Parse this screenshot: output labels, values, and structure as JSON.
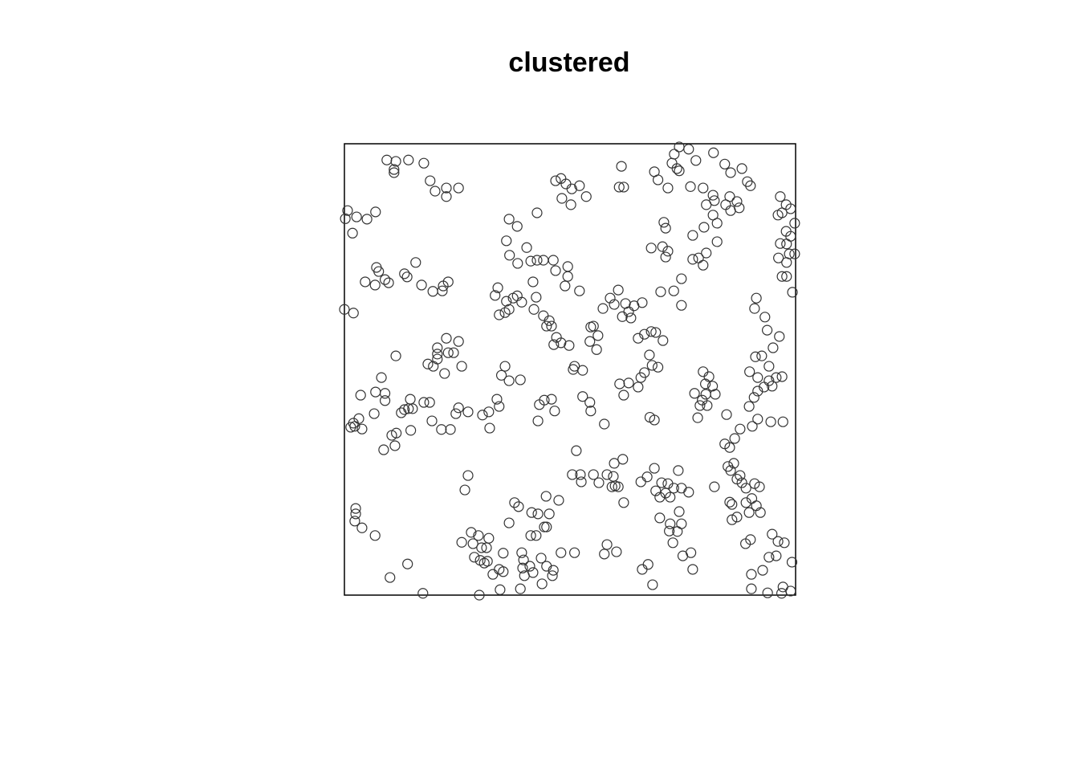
{
  "chart_data": {
    "type": "scatter",
    "title": "clustered",
    "xlim": [
      0,
      1
    ],
    "ylim": [
      0,
      1
    ],
    "color": "#333333",
    "x": [
      0.094,
      0.114,
      0.11,
      0.11,
      0.142,
      0.176,
      0.19,
      0.201,
      0.226,
      0.226,
      0.253,
      0.007,
      0.002,
      0.027,
      0.05,
      0.069,
      0.018,
      0.071,
      0.076,
      0.046,
      0.068,
      0.09,
      0.098,
      0.133,
      0.139,
      0.158,
      0.171,
      0.196,
      0.217,
      0.219,
      0.23,
      0.0,
      0.02,
      0.226,
      0.253,
      0.206,
      0.206,
      0.185,
      0.197,
      0.206,
      0.23,
      0.242,
      0.222,
      0.26,
      0.114,
      0.082,
      0.036,
      0.069,
      0.09,
      0.066,
      0.09,
      0.133,
      0.146,
      0.142,
      0.151,
      0.176,
      0.189,
      0.126,
      0.032,
      0.02,
      0.023,
      0.039,
      0.014,
      0.115,
      0.105,
      0.147,
      0.112,
      0.087,
      0.194,
      0.215,
      0.235,
      0.247,
      0.253,
      0.274,
      0.025,
      0.025,
      0.023,
      0.039,
      0.068,
      0.101,
      0.14,
      0.174,
      0.299,
      0.274,
      0.267,
      0.26,
      0.281,
      0.285,
      0.297,
      0.304,
      0.32,
      0.315,
      0.288,
      0.301,
      0.31,
      0.317,
      0.329,
      0.343,
      0.352,
      0.352,
      0.345,
      0.377,
      0.386,
      0.365,
      0.393,
      0.397,
      0.395,
      0.399,
      0.39,
      0.411,
      0.418,
      0.413,
      0.425,
      0.415,
      0.429,
      0.447,
      0.454,
      0.443,
      0.448,
      0.436,
      0.448,
      0.438,
      0.461,
      0.463,
      0.475,
      0.48,
      0.51,
      0.505,
      0.523,
      0.525,
      0.552,
      0.564,
      0.582,
      0.596,
      0.6,
      0.593,
      0.607,
      0.619,
      0.598,
      0.617,
      0.576,
      0.582,
      0.603,
      0.66,
      0.673,
      0.683,
      0.657,
      0.671,
      0.687,
      0.703,
      0.69,
      0.699,
      0.712,
      0.717,
      0.73,
      0.74,
      0.747,
      0.763,
      0.722,
      0.742,
      0.699,
      0.722,
      0.747,
      0.72,
      0.738,
      0.728,
      0.768,
      0.75,
      0.772,
      0.82,
      0.85,
      0.863,
      0.856,
      0.87,
      0.877,
      0.881,
      0.89,
      0.909,
      0.92,
      0.854,
      0.859,
      0.89,
      0.903,
      0.913,
      0.922,
      0.897,
      0.859,
      0.87,
      0.889,
      0.9,
      0.843,
      0.854,
      0.865,
      0.877,
      0.904,
      0.916,
      0.945,
      0.972,
      0.948,
      0.961,
      0.975,
      0.941,
      0.957,
      0.992,
      0.927,
      0.902,
      0.902,
      0.938,
      0.972,
      0.989,
      0.969,
      0.966,
      0.979,
      0.989,
      0.97,
      0.961,
      0.998,
      0.979,
      0.989,
      0.966,
      0.98,
      0.986,
      0.998,
      0.962,
      0.98,
      0.97,
      0.98,
      0.993,
      0.964,
      0.913,
      0.909,
      0.932,
      0.937,
      0.95,
      0.911,
      0.925,
      0.941,
      0.898,
      0.916,
      0.941,
      0.957,
      0.97,
      0.93,
      0.916,
      0.948,
      0.908,
      0.897,
      0.742,
      0.726,
      0.737,
      0.742,
      0.763,
      0.731,
      0.687,
      0.695,
      0.717,
      0.767,
      0.779,
      0.818,
      0.843,
      0.856,
      0.881,
      0.893,
      0.9,
      0.795,
      0.817,
      0.82,
      0.802,
      0.854,
      0.87,
      0.875,
      0.856,
      0.845,
      0.826,
      0.817,
      0.797,
      0.772,
      0.826,
      0.802,
      0.785,
      0.772,
      0.795,
      0.708,
      0.712,
      0.68,
      0.705,
      0.717,
      0.712,
      0.747,
      0.73,
      0.701,
      0.747,
      0.468,
      0.48,
      0.491,
      0.504,
      0.521,
      0.536,
      0.482,
      0.502,
      0.427,
      0.614,
      0.609,
      0.619,
      0.365,
      0.383,
      0.359,
      0.366,
      0.384,
      0.404,
      0.413,
      0.427,
      0.441,
      0.463,
      0.468,
      0.495,
      0.495,
      0.489,
      0.418,
      0.34,
      0.334,
      0.359,
      0.374,
      0.383,
      0.393,
      0.365,
      0.343,
      0.356,
      0.425,
      0.42,
      0.441,
      0.454,
      0.448,
      0.459,
      0.47,
      0.464,
      0.48,
      0.498,
      0.521,
      0.546,
      0.552,
      0.562,
      0.544,
      0.559,
      0.573,
      0.589,
      0.598,
      0.607,
      0.623,
      0.63,
      0.616,
      0.635,
      0.642,
      0.66,
      0.651,
      0.665,
      0.68,
      0.69,
      0.706,
      0.676,
      0.682,
      0.695,
      0.665,
      0.657,
      0.61,
      0.63,
      0.651,
      0.619,
      0.51,
      0.528,
      0.507,
      0.356,
      0.348,
      0.365,
      0.39,
      0.338,
      0.343,
      0.32,
      0.306,
      0.322,
      0.432,
      0.443,
      0.459,
      0.429,
      0.466,
      0.528,
      0.544,
      0.546,
      0.576,
      0.514,
      0.677,
      0.687,
      0.776,
      0.795,
      0.808,
      0.8,
      0.816,
      0.822,
      0.801,
      0.793,
      0.804,
      0.788,
      0.783,
      0.847
    ],
    "values": [
      0.964,
      0.961,
      0.943,
      0.936,
      0.964,
      0.957,
      0.918,
      0.895,
      0.902,
      0.883,
      0.902,
      0.852,
      0.834,
      0.838,
      0.833,
      0.849,
      0.802,
      0.726,
      0.717,
      0.694,
      0.687,
      0.699,
      0.692,
      0.712,
      0.705,
      0.737,
      0.687,
      0.673,
      0.674,
      0.685,
      0.694,
      0.633,
      0.625,
      0.569,
      0.562,
      0.548,
      0.534,
      0.512,
      0.507,
      0.523,
      0.537,
      0.537,
      0.491,
      0.507,
      0.53,
      0.482,
      0.443,
      0.45,
      0.447,
      0.402,
      0.431,
      0.411,
      0.434,
      0.413,
      0.413,
      0.427,
      0.427,
      0.404,
      0.391,
      0.381,
      0.374,
      0.368,
      0.372,
      0.359,
      0.354,
      0.365,
      0.331,
      0.322,
      0.386,
      0.367,
      0.367,
      0.402,
      0.415,
      0.406,
      0.192,
      0.18,
      0.164,
      0.149,
      0.132,
      0.039,
      0.069,
      0.004,
      0.0,
      0.265,
      0.233,
      0.117,
      0.139,
      0.114,
      0.132,
      0.105,
      0.126,
      0.105,
      0.084,
      0.077,
      0.071,
      0.075,
      0.046,
      0.057,
      0.052,
      0.093,
      0.012,
      0.205,
      0.196,
      0.16,
      0.094,
      0.078,
      0.06,
      0.043,
      0.014,
      0.064,
      0.05,
      0.132,
      0.132,
      0.183,
      0.18,
      0.219,
      0.18,
      0.151,
      0.151,
      0.082,
      0.064,
      0.025,
      0.043,
      0.055,
      0.21,
      0.094,
      0.094,
      0.267,
      0.267,
      0.251,
      0.267,
      0.249,
      0.267,
      0.263,
      0.242,
      0.24,
      0.24,
      0.205,
      0.292,
      0.301,
      0.091,
      0.112,
      0.096,
      0.057,
      0.068,
      0.023,
      0.251,
      0.262,
      0.281,
      0.249,
      0.231,
      0.217,
      0.226,
      0.247,
      0.237,
      0.276,
      0.237,
      0.228,
      0.217,
      0.185,
      0.171,
      0.158,
      0.158,
      0.142,
      0.141,
      0.116,
      0.094,
      0.087,
      0.057,
      0.24,
      0.285,
      0.292,
      0.276,
      0.257,
      0.265,
      0.249,
      0.237,
      0.247,
      0.24,
      0.206,
      0.201,
      0.205,
      0.214,
      0.198,
      0.183,
      0.183,
      0.167,
      0.173,
      0.114,
      0.123,
      0.335,
      0.327,
      0.347,
      0.368,
      0.374,
      0.39,
      0.384,
      0.384,
      0.135,
      0.119,
      0.116,
      0.084,
      0.087,
      0.073,
      0.055,
      0.046,
      0.014,
      0.005,
      0.018,
      0.009,
      0.004,
      0.883,
      0.865,
      0.856,
      0.847,
      0.842,
      0.824,
      0.806,
      0.795,
      0.779,
      0.778,
      0.756,
      0.756,
      0.747,
      0.737,
      0.706,
      0.706,
      0.671,
      0.573,
      0.658,
      0.635,
      0.616,
      0.587,
      0.548,
      0.528,
      0.53,
      0.507,
      0.495,
      0.482,
      0.475,
      0.482,
      0.484,
      0.461,
      0.452,
      0.463,
      0.438,
      0.418,
      0.993,
      0.957,
      0.945,
      0.94,
      0.988,
      0.977,
      0.938,
      0.92,
      0.902,
      0.905,
      0.963,
      0.98,
      0.955,
      0.936,
      0.945,
      0.916,
      0.907,
      0.902,
      0.886,
      0.874,
      0.865,
      0.883,
      0.872,
      0.858,
      0.852,
      0.865,
      0.824,
      0.842,
      0.815,
      0.797,
      0.783,
      0.758,
      0.747,
      0.744,
      0.731,
      0.826,
      0.813,
      0.769,
      0.772,
      0.762,
      0.749,
      0.701,
      0.674,
      0.672,
      0.642,
      0.918,
      0.923,
      0.911,
      0.9,
      0.907,
      0.883,
      0.879,
      0.865,
      0.847,
      0.95,
      0.904,
      0.904,
      0.833,
      0.817,
      0.785,
      0.753,
      0.735,
      0.77,
      0.74,
      0.742,
      0.742,
      0.742,
      0.719,
      0.728,
      0.706,
      0.685,
      0.694,
      0.681,
      0.664,
      0.651,
      0.658,
      0.663,
      0.649,
      0.633,
      0.621,
      0.626,
      0.66,
      0.633,
      0.619,
      0.608,
      0.596,
      0.596,
      0.571,
      0.555,
      0.559,
      0.553,
      0.674,
      0.594,
      0.596,
      0.575,
      0.562,
      0.544,
      0.635,
      0.658,
      0.644,
      0.676,
      0.646,
      0.628,
      0.617,
      0.614,
      0.641,
      0.648,
      0.569,
      0.578,
      0.584,
      0.582,
      0.564,
      0.532,
      0.509,
      0.505,
      0.493,
      0.482,
      0.468,
      0.47,
      0.461,
      0.443,
      0.507,
      0.498,
      0.5,
      0.507,
      0.487,
      0.475,
      0.477,
      0.434,
      0.418,
      0.406,
      0.399,
      0.37,
      0.422,
      0.432,
      0.434,
      0.386,
      0.408,
      0.44,
      0.427,
      0.408,
      0.379,
      0.32,
      0.394,
      0.388,
      0.447,
      0.495,
      0.484,
      0.468,
      0.463,
      0.445,
      0.445,
      0.432,
      0.42,
      0.42,
      0.393,
      0.4
    ]
  }
}
